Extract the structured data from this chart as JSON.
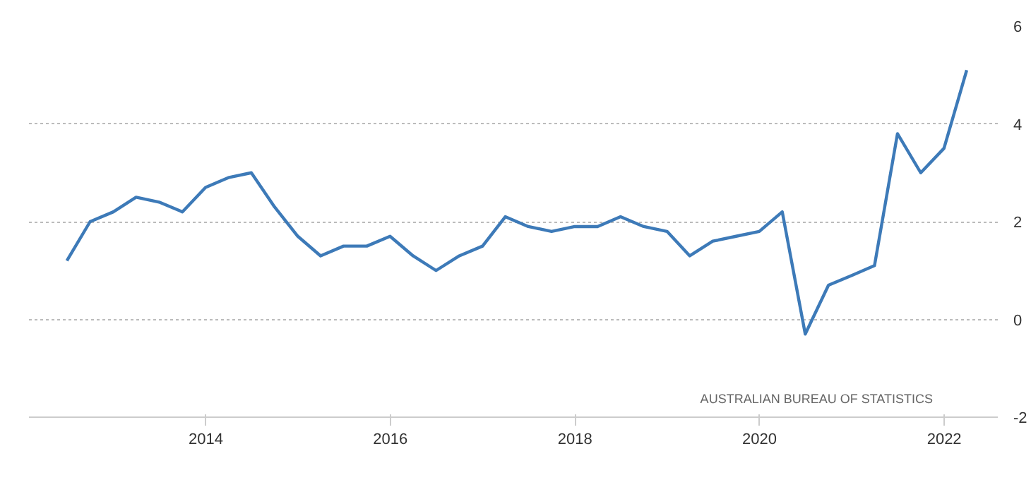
{
  "chart_data": {
    "type": "line",
    "x": [
      "2012-06-30",
      "2012-09-30",
      "2012-12-31",
      "2013-03-31",
      "2013-06-30",
      "2013-09-30",
      "2013-12-31",
      "2014-03-31",
      "2014-06-30",
      "2014-09-30",
      "2014-12-31",
      "2015-03-31",
      "2015-06-30",
      "2015-09-30",
      "2015-12-31",
      "2016-03-31",
      "2016-06-30",
      "2016-09-30",
      "2016-12-31",
      "2017-03-31",
      "2017-06-30",
      "2017-09-30",
      "2017-12-31",
      "2018-03-31",
      "2018-06-30",
      "2018-09-30",
      "2018-12-31",
      "2019-03-31",
      "2019-06-30",
      "2019-09-30",
      "2019-12-31",
      "2020-03-31",
      "2020-06-30",
      "2020-09-30",
      "2020-12-31",
      "2021-03-31",
      "2021-06-30",
      "2021-09-30",
      "2021-12-31",
      "2022-03-31"
    ],
    "series": [
      {
        "color": "#3d7ab8",
        "values": [
          1.2,
          2.0,
          2.2,
          2.5,
          2.4,
          2.2,
          2.7,
          2.9,
          3.0,
          2.3,
          1.7,
          1.3,
          1.5,
          1.5,
          1.7,
          1.3,
          1.0,
          1.3,
          1.5,
          2.1,
          1.9,
          1.8,
          1.9,
          1.9,
          2.1,
          1.9,
          1.8,
          1.3,
          1.6,
          1.7,
          1.8,
          2.2,
          -0.3,
          0.7,
          0.9,
          1.1,
          3.8,
          3.0,
          3.5,
          5.1
        ]
      }
    ],
    "xlim": [
      "2012-02-01",
      "2022-08-01"
    ],
    "xticks": [
      "2014",
      "2016",
      "2018",
      "2020",
      "2022"
    ],
    "ylim": [
      -2,
      6
    ],
    "yticks": [
      -2,
      0,
      2,
      4,
      6
    ],
    "grid": "y",
    "line_style": "solid",
    "marker": "none",
    "annotations": [
      "AUSTRALIAN BUREAU OF STATISTICS"
    ]
  }
}
